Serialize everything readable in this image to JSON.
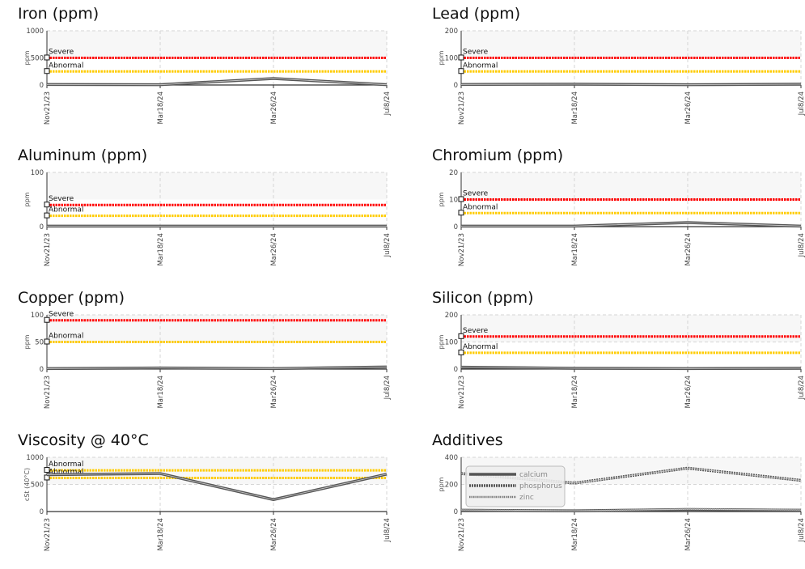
{
  "chart_data": [
    {
      "type": "line",
      "title": "Iron (ppm)",
      "ylabel": "ppm",
      "ylim": [
        0,
        1000
      ],
      "y_ticks": [
        "0",
        "500",
        "1000"
      ],
      "x": [
        "Nov21/23",
        "Mar18/24",
        "Mar26/24",
        "Jul8/24"
      ],
      "series": [
        {
          "values": [
            10,
            5,
            120,
            5
          ]
        }
      ],
      "thresholds": [
        {
          "label": "Severe",
          "value": 500,
          "color": "#ff0000"
        },
        {
          "label": "Abnormal",
          "value": 250,
          "color": "#ffcc00"
        }
      ]
    },
    {
      "type": "line",
      "title": "Lead (ppm)",
      "ylabel": "ppm",
      "ylim": [
        0,
        200
      ],
      "y_ticks": [
        "0",
        "100",
        "200"
      ],
      "x": [
        "Nov21/23",
        "Mar18/24",
        "Mar26/24",
        "Jul8/24"
      ],
      "series": [
        {
          "values": [
            2,
            3,
            1,
            3
          ]
        }
      ],
      "thresholds": [
        {
          "label": "Severe",
          "value": 100,
          "color": "#ff0000"
        },
        {
          "label": "Abnormal",
          "value": 50,
          "color": "#ffcc00"
        }
      ]
    },
    {
      "type": "line",
      "title": "Aluminum (ppm)",
      "ylabel": "ppm",
      "ylim": [
        0,
        100
      ],
      "y_ticks": [
        "0",
        "100"
      ],
      "x": [
        "Nov21/23",
        "Mar18/24",
        "Mar26/24",
        "Jul8/24"
      ],
      "series": [
        {
          "values": [
            1,
            1,
            1,
            1
          ]
        }
      ],
      "thresholds": [
        {
          "label": "Severe",
          "value": 40,
          "color": "#ff0000"
        },
        {
          "label": "Abnormal",
          "value": 20,
          "color": "#ffcc00"
        }
      ]
    },
    {
      "type": "line",
      "title": "Chromium (ppm)",
      "ylabel": "ppm",
      "ylim": [
        0,
        20
      ],
      "y_ticks": [
        "0",
        "10",
        "20"
      ],
      "x": [
        "Nov21/23",
        "Mar18/24",
        "Mar26/24",
        "Jul8/24"
      ],
      "series": [
        {
          "values": [
            0.2,
            0.2,
            1.5,
            0.2
          ]
        }
      ],
      "thresholds": [
        {
          "label": "Severe",
          "value": 10,
          "color": "#ff0000"
        },
        {
          "label": "Abnormal",
          "value": 5,
          "color": "#ffcc00"
        }
      ]
    },
    {
      "type": "line",
      "title": "Copper (ppm)",
      "ylabel": "ppm",
      "ylim": [
        0,
        100
      ],
      "y_ticks": [
        "0",
        "50",
        "100"
      ],
      "x": [
        "Nov21/23",
        "Mar18/24",
        "Mar26/24",
        "Jul8/24"
      ],
      "series": [
        {
          "values": [
            1,
            2,
            1,
            4
          ]
        }
      ],
      "thresholds": [
        {
          "label": "Severe",
          "value": 90,
          "color": "#ff0000"
        },
        {
          "label": "Abnormal",
          "value": 50,
          "color": "#ffcc00"
        }
      ]
    },
    {
      "type": "line",
      "title": "Silicon (ppm)",
      "ylabel": "ppm",
      "ylim": [
        0,
        200
      ],
      "y_ticks": [
        "0",
        "100",
        "200"
      ],
      "x": [
        "Nov21/23",
        "Mar18/24",
        "Mar26/24",
        "Jul8/24"
      ],
      "series": [
        {
          "values": [
            7,
            3,
            2,
            3
          ]
        }
      ],
      "thresholds": [
        {
          "label": "Severe",
          "value": 120,
          "color": "#ff0000"
        },
        {
          "label": "Abnormal",
          "value": 60,
          "color": "#ffcc00"
        }
      ]
    },
    {
      "type": "line",
      "title": "Viscosity @ 40°C",
      "ylabel": "cSt (40°C)",
      "ylim": [
        0,
        1000
      ],
      "y_ticks": [
        "0",
        "500",
        "1000"
      ],
      "x": [
        "Nov21/23",
        "Mar18/24",
        "Mar26/24",
        "Jul8/24"
      ],
      "series": [
        {
          "values": [
            680,
            700,
            220,
            690
          ]
        }
      ],
      "thresholds": [
        {
          "label": "Abnormal",
          "value": 760,
          "color": "#ffcc00"
        },
        {
          "label": "Abnormal",
          "value": 620,
          "color": "#ffcc00"
        }
      ]
    },
    {
      "type": "line",
      "title": "Additives",
      "ylabel": "ppm",
      "ylim": [
        0,
        400
      ],
      "y_ticks": [
        "0",
        "200",
        "400"
      ],
      "x": [
        "Nov21/23",
        "Mar18/24",
        "Mar26/24",
        "Jul8/24"
      ],
      "legend": "top-left",
      "series": [
        {
          "name": "calcium",
          "values": [
            10,
            5,
            15,
            10
          ],
          "style": "solid"
        },
        {
          "name": "phosphorus",
          "values": [
            280,
            210,
            320,
            230
          ],
          "style": "dashed"
        },
        {
          "name": "zinc",
          "values": [
            12,
            6,
            18,
            12
          ],
          "style": "dotted"
        }
      ],
      "thresholds": []
    }
  ]
}
